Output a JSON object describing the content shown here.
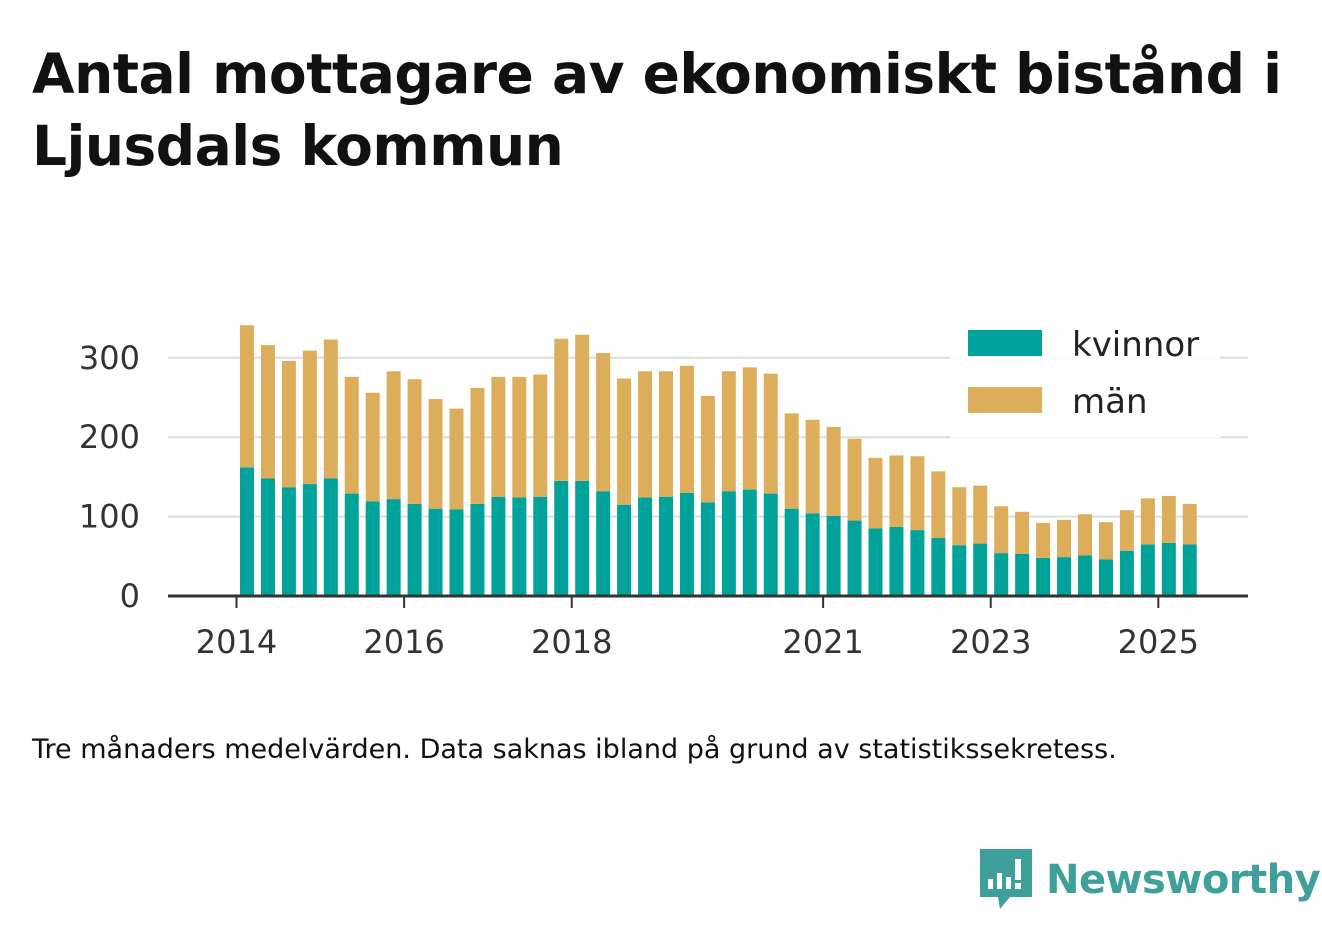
{
  "title": "Antal mottagare av ekonomiskt bistånd i Ljusdals kommun",
  "footnote": "Tre månaders medelvärden. Data saknas ibland på grund av statistikssekretess.",
  "brand": {
    "name": "Newsworthy",
    "icon": "newsworthy-logo-icon",
    "color": "#3f9f9a"
  },
  "colors": {
    "kvinnor": "#00a29a",
    "man": "#dcae5c",
    "grid": "#dddddd",
    "axis": "#333333"
  },
  "chart_data": {
    "type": "bar",
    "stacked": true,
    "title": "Antal mottagare av ekonomiskt bistånd i Ljusdals kommun",
    "xlabel": "",
    "ylabel": "",
    "ylim": [
      0,
      345
    ],
    "y_ticks": [
      0,
      100,
      200,
      300
    ],
    "x_ticks": [
      {
        "label": "2014",
        "index": -1
      },
      {
        "label": "2016",
        "index": 7
      },
      {
        "label": "2018",
        "index": 15
      },
      {
        "label": "2021",
        "index": 27
      },
      {
        "label": "2023",
        "index": 35
      },
      {
        "label": "2025",
        "index": 43
      }
    ],
    "grid": true,
    "legend_position": "top-right",
    "series": [
      {
        "name": "kvinnor",
        "color": "#00a29a",
        "values": [
          162,
          148,
          137,
          141,
          148,
          129,
          119,
          122,
          116,
          110,
          109,
          116,
          125,
          124,
          125,
          145,
          145,
          132,
          115,
          124,
          125,
          130,
          118,
          132,
          134,
          129,
          110,
          104,
          101,
          95,
          85,
          87,
          83,
          73,
          64,
          66,
          54,
          53,
          48,
          49,
          51,
          46,
          57,
          65,
          67,
          65
        ]
      },
      {
        "name": "män",
        "color": "#dcae5c",
        "values": [
          179,
          168,
          159,
          168,
          175,
          147,
          137,
          161,
          157,
          138,
          127,
          146,
          151,
          152,
          154,
          179,
          184,
          174,
          159,
          159,
          158,
          160,
          134,
          151,
          154,
          151,
          120,
          118,
          112,
          103,
          89,
          90,
          93,
          84,
          73,
          73,
          59,
          53,
          44,
          47,
          52,
          47,
          51,
          58,
          59,
          51
        ]
      }
    ]
  }
}
